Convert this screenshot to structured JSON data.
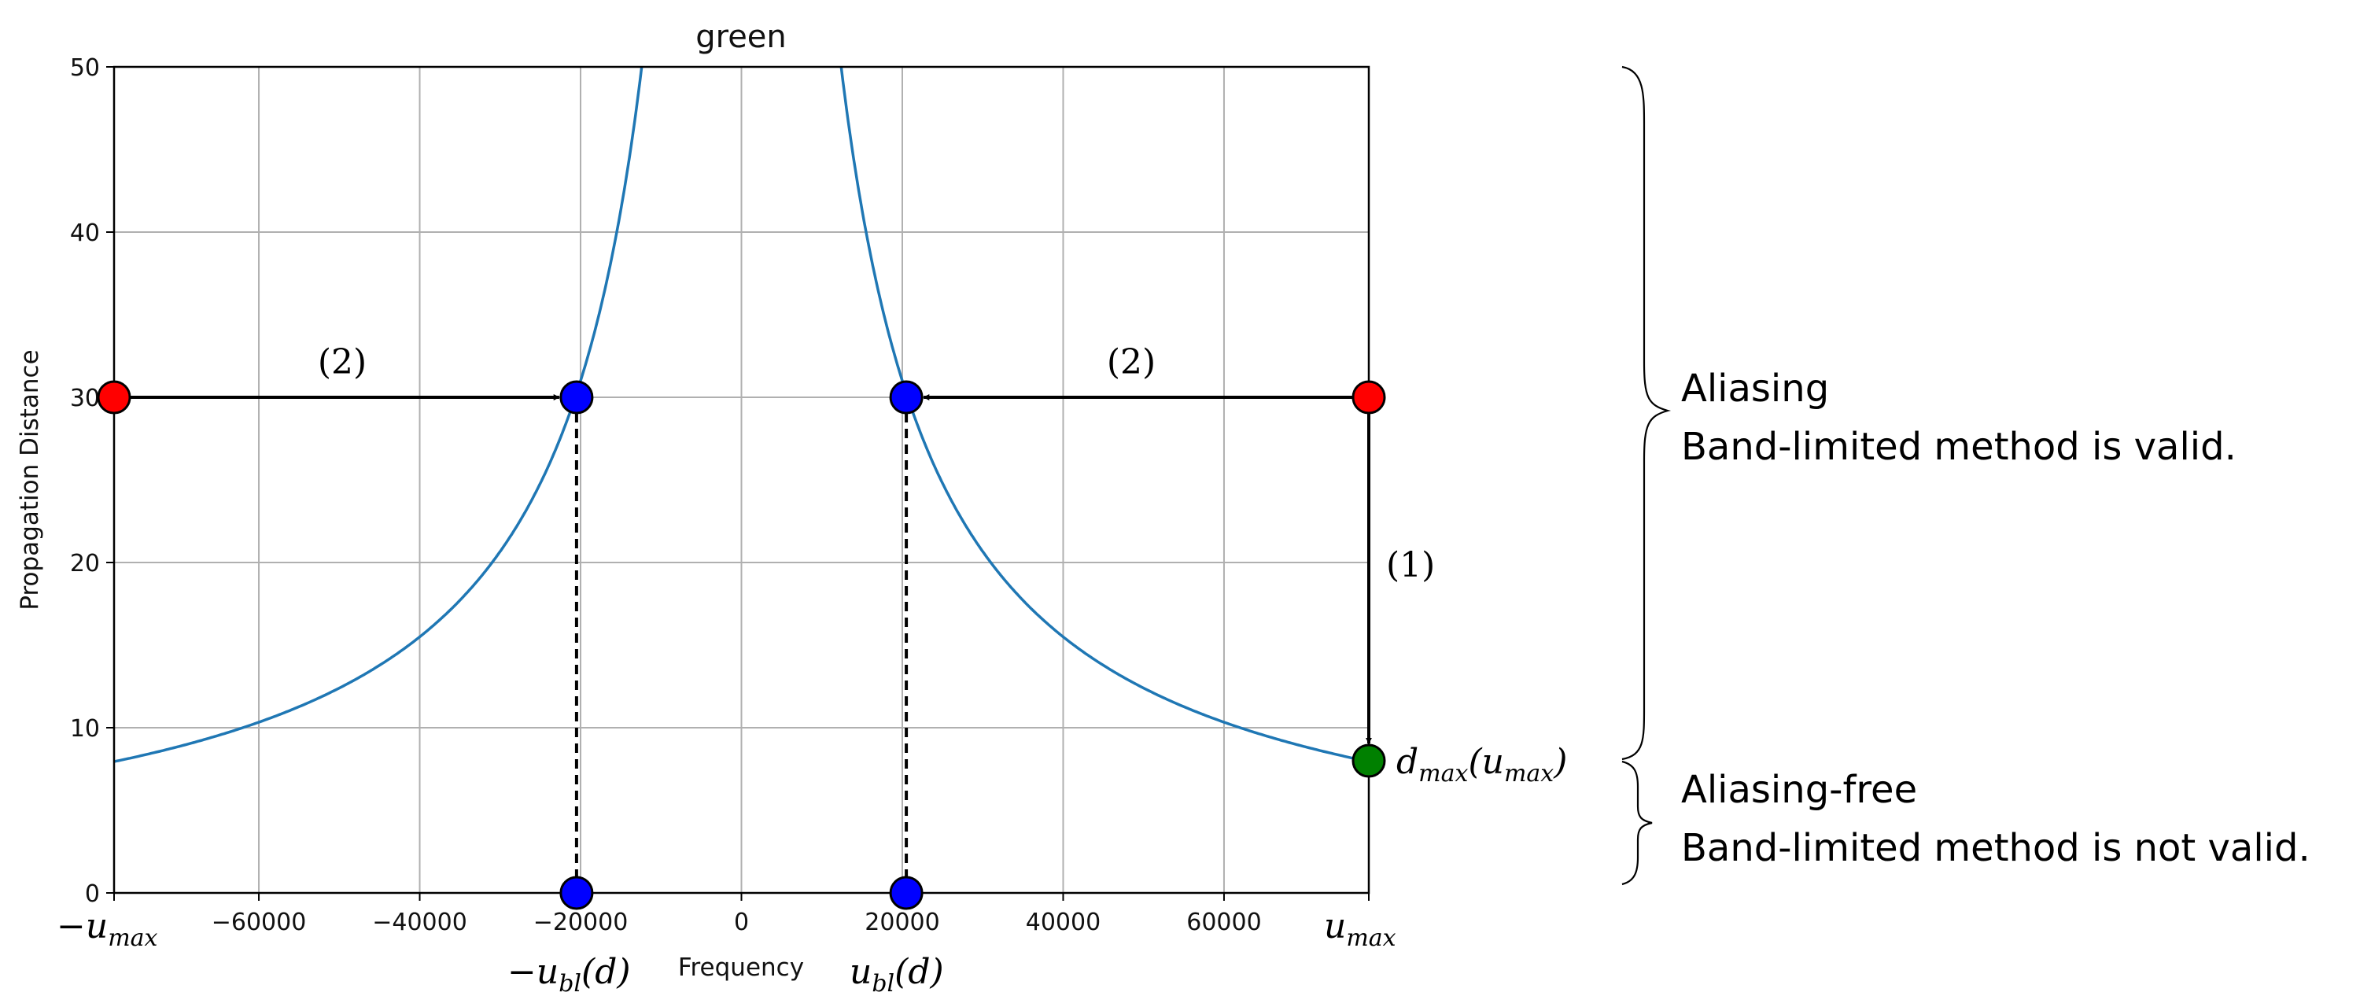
{
  "chart_data": {
    "type": "line",
    "title": "green",
    "xlabel": "Frequency",
    "ylabel": "Propagation Distance",
    "xlim": [
      -78000,
      78000
    ],
    "ylim": [
      0,
      50
    ],
    "x_ticks": [
      -60000,
      -40000,
      -20000,
      0,
      20000,
      40000,
      60000
    ],
    "x_tick_labels": [
      "−60000",
      "−40000",
      "−20000",
      "0",
      "20000",
      "40000",
      "60000"
    ],
    "y_ticks": [
      0,
      10,
      20,
      30,
      40,
      50
    ],
    "y_tick_labels": [
      "0",
      "10",
      "20",
      "30",
      "40",
      "50"
    ],
    "grid": true,
    "series": [
      {
        "kind": "curve",
        "x_over_y_constant": 620000,
        "x_min_abs": 12400,
        "x_max_abs": 78000,
        "color": "#1f77b4"
      }
    ],
    "points": [
      {
        "role": "red-start-left",
        "x": -78000,
        "y": 30,
        "color": "#ff0000"
      },
      {
        "role": "red-start-right",
        "x": 78000,
        "y": 30,
        "color": "#ff0000"
      },
      {
        "role": "blue-curve-left",
        "x": -20500,
        "y": 30,
        "color": "#0000ff"
      },
      {
        "role": "blue-curve-right",
        "x": 20500,
        "y": 30,
        "color": "#0000ff"
      },
      {
        "role": "blue-axis-left",
        "x": -20500,
        "y": 0,
        "color": "#0000ff"
      },
      {
        "role": "blue-axis-right",
        "x": 20500,
        "y": 0,
        "color": "#0000ff"
      },
      {
        "role": "green-dmax",
        "x": 78000,
        "y": 8,
        "color": "#008000"
      }
    ],
    "arrows": [
      {
        "from": [
          -78000,
          30
        ],
        "to": [
          -20500,
          30
        ],
        "label": "(2)"
      },
      {
        "from": [
          78000,
          30
        ],
        "to": [
          20500,
          30
        ],
        "label": "(2)"
      },
      {
        "from": [
          78000,
          30
        ],
        "to": [
          78000,
          8
        ],
        "label": "(1)"
      }
    ],
    "dashed_lines": [
      {
        "from": [
          -20500,
          30
        ],
        "to": [
          -20500,
          0
        ]
      },
      {
        "from": [
          20500,
          30
        ],
        "to": [
          20500,
          0
        ]
      }
    ],
    "annotations": {
      "neg_umax": {
        "main": "−u",
        "sub": "max"
      },
      "umax": {
        "main": "u",
        "sub": "max"
      },
      "neg_ubl": {
        "main": "−u",
        "sub": "bl",
        "tail": "(d)"
      },
      "ubl": {
        "main": "u",
        "sub": "bl",
        "tail": "(d)"
      },
      "dmax": {
        "main": "d",
        "sub": "max",
        "mid": "(u",
        "sub2": "max",
        "tail": ")"
      }
    }
  },
  "side_labels": {
    "upper_line1": "Aliasing",
    "upper_line2": "Band-limited method is valid.",
    "lower_line1": "Aliasing-free",
    "lower_line2": "Band-limited method is not valid."
  }
}
